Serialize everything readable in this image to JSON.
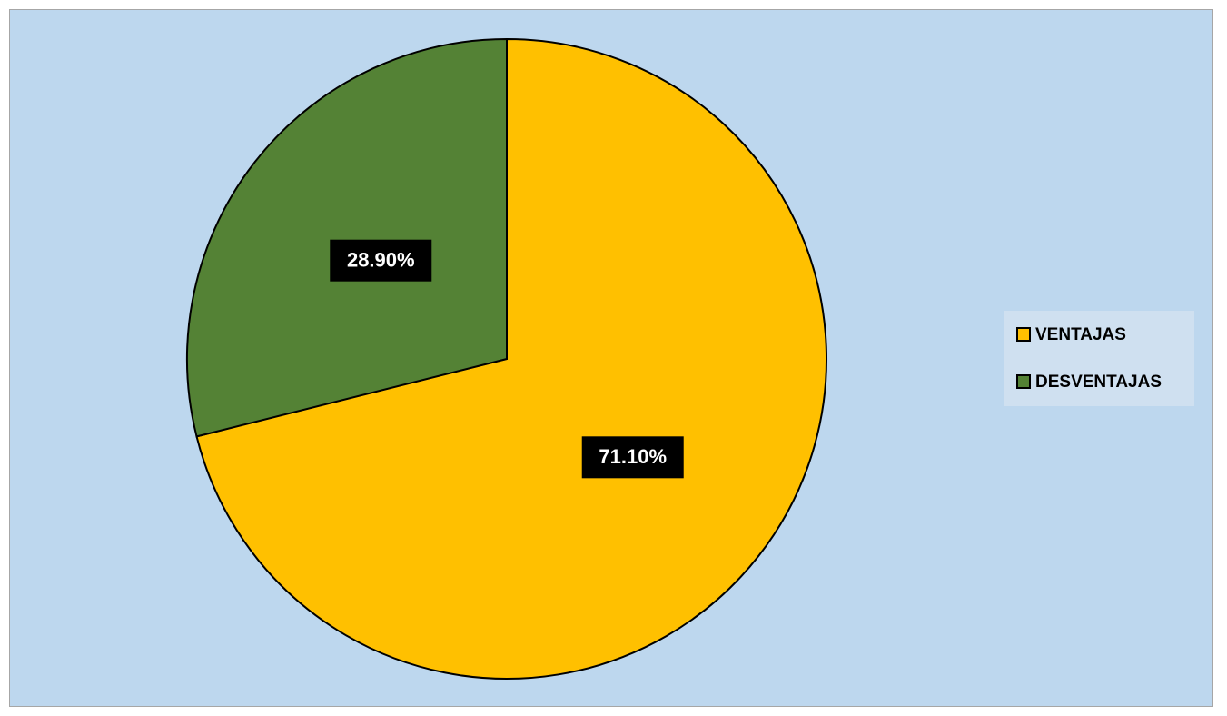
{
  "chart_data": {
    "type": "pie",
    "categories": [
      "VENTAJAS",
      "DESVENTAJAS"
    ],
    "values": [
      71.1,
      28.9
    ],
    "value_labels": [
      "71.10%",
      "28.90%"
    ],
    "colors": [
      "#FFC000",
      "#548235"
    ],
    "legend": "right"
  }
}
